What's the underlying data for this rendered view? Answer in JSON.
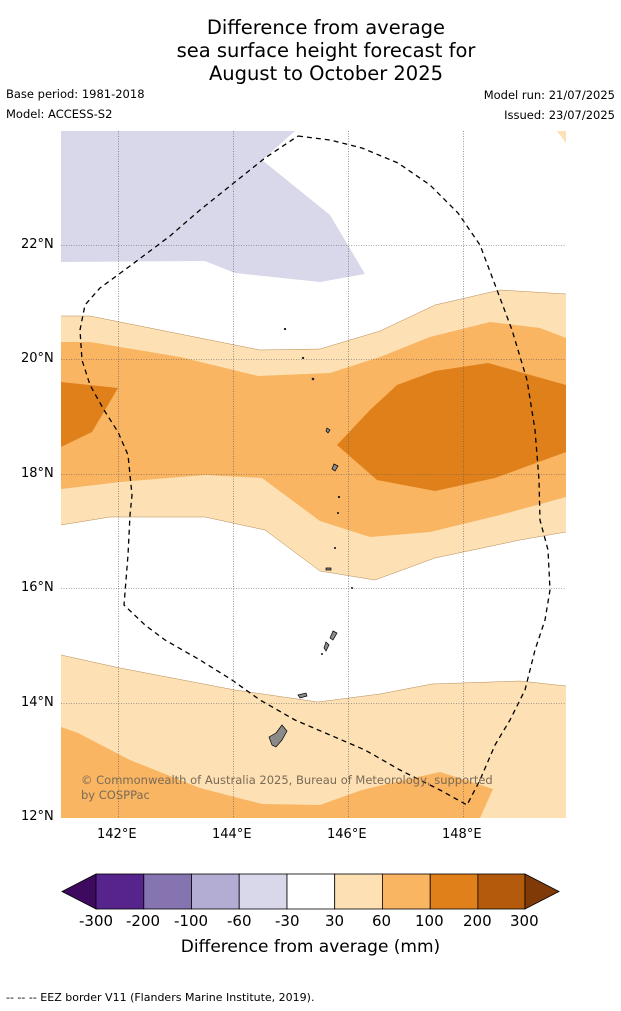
{
  "title": {
    "line1": "Difference from average",
    "line2": "sea surface height forecast for",
    "line3": "August to October 2025"
  },
  "meta": {
    "base_period": "Base period: 1981-2018",
    "model": "Model: ACCESS-S2",
    "model_run": "Model run: 21/07/2025",
    "issued": "Issued: 23/07/2025"
  },
  "map": {
    "lat_labels": [
      "22°N",
      "20°N",
      "18°N",
      "16°N",
      "14°N",
      "12°N"
    ],
    "lon_labels": [
      "142°E",
      "144°E",
      "146°E",
      "148°E"
    ],
    "copyright_line1": "© Commonwealth of Australia 2025, Bureau of Meteorology, supported",
    "copyright_line2": "by COSPPac",
    "eez_border": "dashed"
  },
  "colorbar": {
    "ticks": [
      "-300",
      "-200",
      "-100",
      "-60",
      "-30",
      "30",
      "60",
      "100",
      "200",
      "300"
    ],
    "colors": [
      "#3d0a5f",
      "#57238c",
      "#8574b0",
      "#b3acd3",
      "#d8d8ea",
      "#ffffff",
      "#fde0b3",
      "#f9b562",
      "#e0801a",
      "#b45a0c",
      "#7f3a08"
    ],
    "label": "Difference from average (mm)"
  },
  "footer": "--  --  -- EEZ border V11 (Flanders Marine Institute, 2019)."
}
